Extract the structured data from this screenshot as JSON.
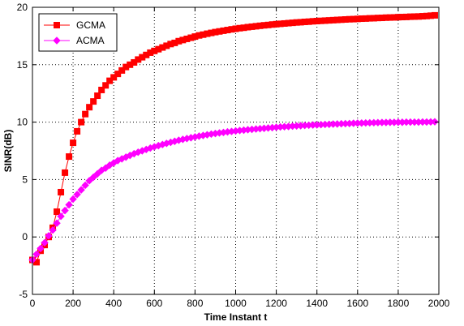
{
  "chart_data": {
    "type": "line",
    "title": "",
    "xlabel": "Time Instant t",
    "ylabel": "SINR(dB)",
    "xlim": [
      0,
      2000
    ],
    "ylim": [
      -5,
      20
    ],
    "xticks": [
      0,
      200,
      400,
      600,
      800,
      1000,
      1200,
      1400,
      1600,
      1800,
      2000
    ],
    "yticks": [
      -5,
      0,
      5,
      10,
      15,
      20
    ],
    "grid": true,
    "legend_position": "top-left",
    "series": [
      {
        "name": "GCMA",
        "color": "#ff0000",
        "marker": "square",
        "x": [
          0,
          20,
          40,
          60,
          80,
          100,
          120,
          140,
          160,
          180,
          200,
          220,
          240,
          260,
          280,
          300,
          320,
          340,
          360,
          380,
          400,
          420,
          440,
          460,
          480,
          500,
          520,
          540,
          560,
          580,
          600,
          620,
          640,
          660,
          680,
          700,
          720,
          740,
          760,
          780,
          800,
          820,
          840,
          860,
          880,
          900,
          920,
          940,
          960,
          980,
          1000,
          1020,
          1040,
          1060,
          1080,
          1100,
          1120,
          1140,
          1160,
          1180,
          1200,
          1220,
          1240,
          1260,
          1280,
          1300,
          1320,
          1340,
          1360,
          1380,
          1400,
          1420,
          1440,
          1460,
          1480,
          1500,
          1520,
          1540,
          1560,
          1580,
          1600,
          1620,
          1640,
          1660,
          1680,
          1700,
          1720,
          1740,
          1760,
          1780,
          1800,
          1820,
          1840,
          1860,
          1880,
          1900,
          1920,
          1940,
          1960,
          1980
        ],
        "y": [
          -2.0,
          -2.2,
          -1.2,
          -0.7,
          0.0,
          0.8,
          2.2,
          3.9,
          5.6,
          7.0,
          8.2,
          9.2,
          10.0,
          10.7,
          11.3,
          11.8,
          12.3,
          12.8,
          13.2,
          13.6,
          13.9,
          14.2,
          14.5,
          14.8,
          15.0,
          15.2,
          15.45,
          15.65,
          15.85,
          16.05,
          16.2,
          16.35,
          16.5,
          16.65,
          16.8,
          16.9,
          17.05,
          17.15,
          17.25,
          17.35,
          17.45,
          17.55,
          17.62,
          17.7,
          17.77,
          17.84,
          17.9,
          17.96,
          18.02,
          18.08,
          18.13,
          18.18,
          18.22,
          18.27,
          18.31,
          18.35,
          18.39,
          18.43,
          18.46,
          18.5,
          18.53,
          18.56,
          18.59,
          18.62,
          18.65,
          18.68,
          18.7,
          18.73,
          18.75,
          18.78,
          18.8,
          18.82,
          18.84,
          18.86,
          18.88,
          18.9,
          18.92,
          18.94,
          18.96,
          18.97,
          18.99,
          19.01,
          19.02,
          19.04,
          19.05,
          19.07,
          19.08,
          19.1,
          19.11,
          19.12,
          19.14,
          19.15,
          19.16,
          19.18,
          19.19,
          19.2,
          19.22,
          19.24,
          19.27,
          19.3
        ]
      },
      {
        "name": "ACMA",
        "color": "#ff00ff",
        "marker": "diamond",
        "x": [
          0,
          20,
          40,
          60,
          80,
          100,
          120,
          140,
          160,
          180,
          200,
          220,
          240,
          260,
          280,
          300,
          320,
          340,
          360,
          380,
          400,
          420,
          440,
          460,
          480,
          500,
          520,
          540,
          560,
          580,
          600,
          620,
          640,
          660,
          680,
          700,
          720,
          740,
          760,
          780,
          800,
          820,
          840,
          860,
          880,
          900,
          920,
          940,
          960,
          980,
          1000,
          1020,
          1040,
          1060,
          1080,
          1100,
          1120,
          1140,
          1160,
          1180,
          1200,
          1220,
          1240,
          1260,
          1280,
          1300,
          1320,
          1340,
          1360,
          1380,
          1400,
          1420,
          1440,
          1460,
          1480,
          1500,
          1520,
          1540,
          1560,
          1580,
          1600,
          1620,
          1640,
          1660,
          1680,
          1700,
          1720,
          1740,
          1760,
          1780,
          1800,
          1820,
          1840,
          1860,
          1880,
          1900,
          1920,
          1940,
          1960,
          1980
        ],
        "y": [
          -2.0,
          -1.5,
          -1.0,
          -0.5,
          0.1,
          0.6,
          1.2,
          1.8,
          2.3,
          2.8,
          3.3,
          3.7,
          4.1,
          4.5,
          4.9,
          5.2,
          5.5,
          5.8,
          6.0,
          6.25,
          6.45,
          6.65,
          6.8,
          6.95,
          7.1,
          7.25,
          7.38,
          7.5,
          7.62,
          7.74,
          7.85,
          7.95,
          8.05,
          8.15,
          8.24,
          8.33,
          8.42,
          8.5,
          8.57,
          8.64,
          8.71,
          8.78,
          8.84,
          8.9,
          8.96,
          9.01,
          9.06,
          9.1,
          9.15,
          9.19,
          9.23,
          9.27,
          9.3,
          9.34,
          9.37,
          9.4,
          9.43,
          9.46,
          9.49,
          9.52,
          9.55,
          9.58,
          9.6,
          9.62,
          9.65,
          9.67,
          9.69,
          9.71,
          9.73,
          9.75,
          9.76,
          9.78,
          9.8,
          9.81,
          9.83,
          9.84,
          9.86,
          9.87,
          9.88,
          9.9,
          9.91,
          9.92,
          9.93,
          9.94,
          9.95,
          9.96,
          9.97,
          9.97,
          9.98,
          9.98,
          9.99,
          9.99,
          10.0,
          10.0,
          10.0,
          10.0,
          10.01,
          10.01,
          10.02,
          10.03
        ]
      }
    ]
  }
}
